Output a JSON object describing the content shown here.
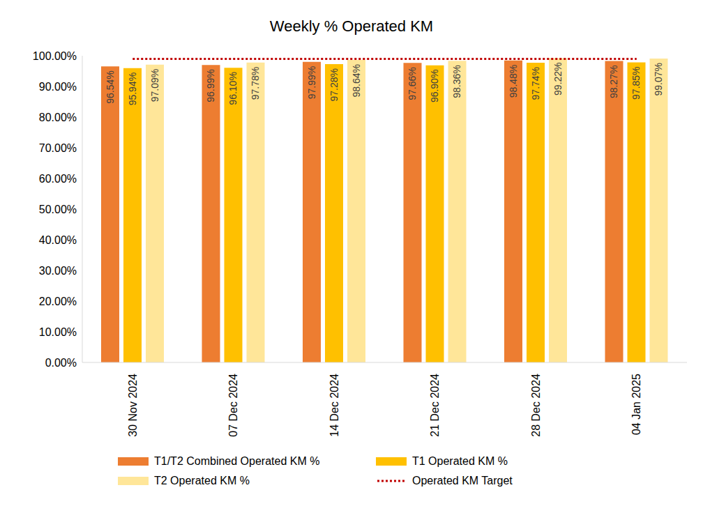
{
  "chart_data": {
    "type": "bar",
    "title": "Weekly % Operated KM",
    "categories": [
      "30 Nov 2024",
      "07 Dec 2024",
      "14 Dec 2024",
      "21 Dec 2024",
      "28 Dec 2024",
      "04 Jan 2025"
    ],
    "series": [
      {
        "name": "T1/T2 Combined Operated KM %",
        "color": "#ed7d31",
        "values": [
          96.54,
          96.99,
          97.99,
          97.66,
          98.48,
          98.27
        ],
        "value_labels": [
          "96.54%",
          "96.99%",
          "97.99%",
          "97.66%",
          "98.48%",
          "98.27%"
        ]
      },
      {
        "name": "T1 Operated KM %",
        "color": "#ffc000",
        "values": [
          95.94,
          96.1,
          97.28,
          96.9,
          97.74,
          97.85
        ],
        "value_labels": [
          "95.94%",
          "96.10%",
          "97.28%",
          "96.90%",
          "97.74%",
          "97.85%"
        ]
      },
      {
        "name": "T2 Operated KM %",
        "color": "#ffe699",
        "values": [
          97.09,
          97.78,
          98.64,
          98.36,
          99.22,
          99.07
        ],
        "value_labels": [
          "97.09%",
          "97.78%",
          "98.64%",
          "98.36%",
          "99.22%",
          "99.07%"
        ]
      },
      {
        "name": "Operated KM Target",
        "type": "line",
        "color": "#c00000",
        "line_style": "dotted",
        "values": [
          99,
          99,
          99,
          99,
          99,
          99
        ]
      }
    ],
    "ylim": [
      0,
      100
    ],
    "yticks": [
      {
        "value": 0,
        "label": "0.00%"
      },
      {
        "value": 10,
        "label": "10.00%"
      },
      {
        "value": 20,
        "label": "20.00%"
      },
      {
        "value": 30,
        "label": "30.00%"
      },
      {
        "value": 40,
        "label": "40.00%"
      },
      {
        "value": 50,
        "label": "50.00%"
      },
      {
        "value": 60,
        "label": "60.00%"
      },
      {
        "value": 70,
        "label": "70.00%"
      },
      {
        "value": 80,
        "label": "80.00%"
      },
      {
        "value": 90,
        "label": "90.00%"
      },
      {
        "value": 100,
        "label": "100.00%"
      }
    ],
    "grid": false,
    "data_labels": true,
    "legend": "bottom"
  }
}
